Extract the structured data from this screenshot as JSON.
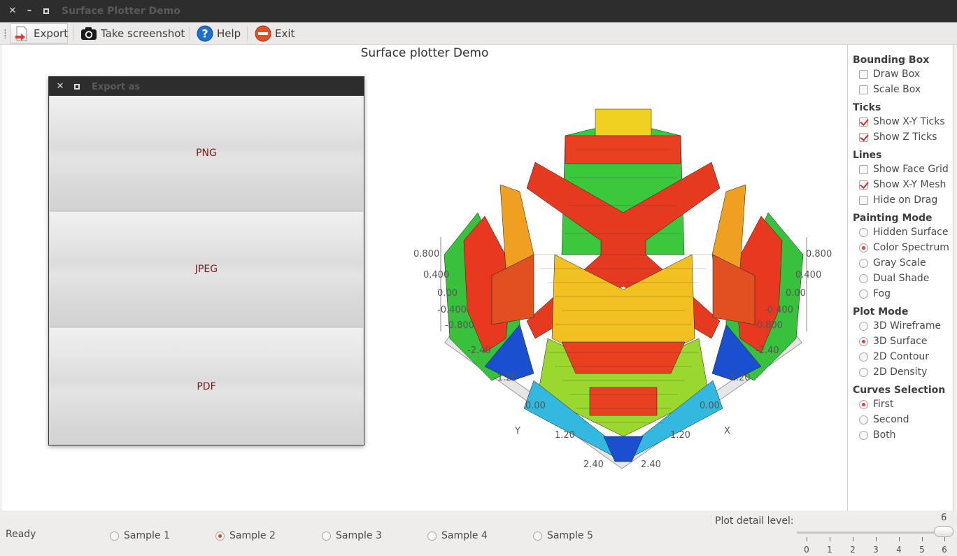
{
  "window": {
    "title": "Surface Plotter Demo"
  },
  "toolbar": [
    {
      "label": "Export",
      "icon": "export-icon"
    },
    {
      "label": "Take screenshot",
      "icon": "camera-icon"
    },
    {
      "label": "Help",
      "icon": "help-icon"
    },
    {
      "label": "Exit",
      "icon": "exit-icon"
    }
  ],
  "plot": {
    "title": "Surface plotter Demo",
    "left_z_ticks": [
      "0.800",
      "0.400",
      "0.00",
      "-0.400",
      "-0.800"
    ],
    "right_z_ticks": [
      "0.800",
      "0.400",
      "0.00",
      "-0.400",
      "-0.800"
    ],
    "y_ticks": [
      "-2.40",
      "-1.20",
      "0.00",
      "1.20",
      "2.40"
    ],
    "x_ticks": [
      "-2.40",
      "-1.20",
      "0.00",
      "1.20",
      "2.40"
    ],
    "y_label": "Y",
    "x_label": "X"
  },
  "dialog": {
    "title": "Export as",
    "buttons": [
      "PNG",
      "JPEG",
      "PDF"
    ]
  },
  "panel": {
    "bounding_box": {
      "title": "Bounding Box",
      "options": [
        {
          "label": "Draw Box",
          "checked": false
        },
        {
          "label": "Scale Box",
          "checked": false
        }
      ]
    },
    "ticks": {
      "title": "Ticks",
      "options": [
        {
          "label": "Show X-Y Ticks",
          "checked": true
        },
        {
          "label": "Show Z Ticks",
          "checked": true
        }
      ]
    },
    "lines": {
      "title": "Lines",
      "options": [
        {
          "label": "Show Face Grid",
          "checked": false
        },
        {
          "label": "Show X-Y Mesh",
          "checked": true
        },
        {
          "label": "Hide on Drag",
          "checked": false
        }
      ]
    },
    "painting_mode": {
      "title": "Painting Mode",
      "options": [
        {
          "label": "Hidden Surface",
          "selected": false
        },
        {
          "label": "Color Spectrum",
          "selected": true
        },
        {
          "label": "Gray Scale",
          "selected": false
        },
        {
          "label": "Dual Shade",
          "selected": false
        },
        {
          "label": "Fog",
          "selected": false
        }
      ]
    },
    "plot_mode": {
      "title": "Plot Mode",
      "options": [
        {
          "label": "3D Wireframe",
          "selected": false
        },
        {
          "label": "3D Surface",
          "selected": true
        },
        {
          "label": "2D Contour",
          "selected": false
        },
        {
          "label": "2D Density",
          "selected": false
        }
      ]
    },
    "curves_selection": {
      "title": "Curves Selection",
      "options": [
        {
          "label": "First",
          "selected": true
        },
        {
          "label": "Second",
          "selected": false
        },
        {
          "label": "Both",
          "selected": false
        }
      ]
    }
  },
  "status": {
    "text": "Ready",
    "samples": [
      {
        "label": "Sample 1",
        "selected": false
      },
      {
        "label": "Sample 2",
        "selected": true
      },
      {
        "label": "Sample 3",
        "selected": false
      },
      {
        "label": "Sample 4",
        "selected": false
      },
      {
        "label": "Sample 5",
        "selected": false
      }
    ],
    "detail_label": "Plot detail level:",
    "detail_value": "6",
    "detail_ticks": [
      "0",
      "1",
      "2",
      "3",
      "4",
      "5",
      "6"
    ]
  },
  "colors": {
    "accent": "#e0422e",
    "titlebar": "#2d2d2d",
    "dialog_text": "#7a1a1a"
  }
}
